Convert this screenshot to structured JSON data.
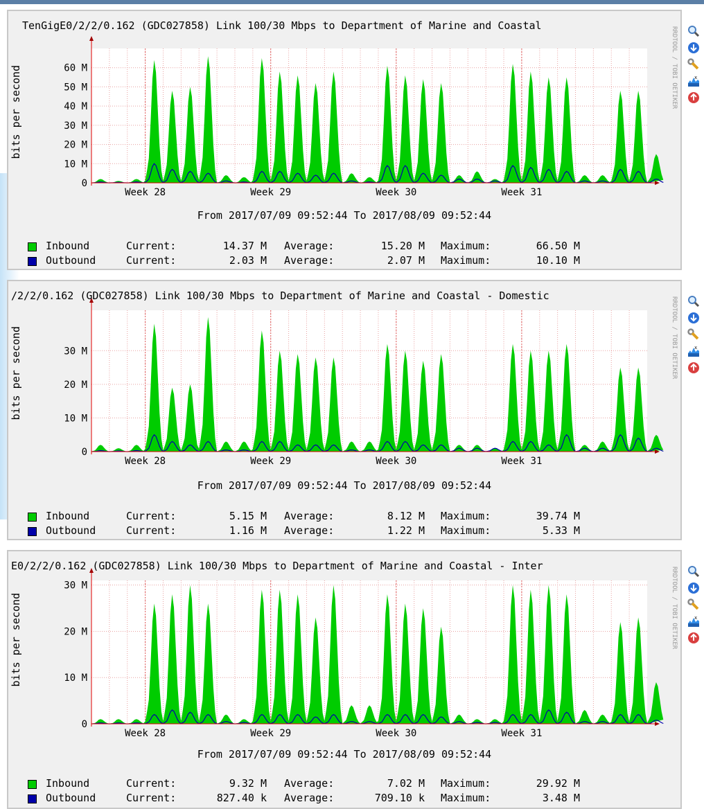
{
  "colors": {
    "inbound": "#00cc00",
    "outbound": "#0000ff",
    "grid": "#e8a0a0",
    "axis": "#e00000",
    "panel_bg": "#f0f0f0",
    "plot_bg": "#ffffff"
  },
  "icons": [
    "zoom-icon",
    "download-icon",
    "edit-wrench-icon",
    "realtime-graph-icon",
    "remove-icon"
  ],
  "graphs": [
    {
      "title": "TenGigE0/2/2/0.162 (GDC027858) Link 100/30 Mbps to Department of Marine and Coastal",
      "y_label": "bits per second",
      "rrd_credit": "RRDTOOL / TOBI OETIKER",
      "date_range": "From 2017/07/09 09:52:44 To 2017/08/09 09:52:44",
      "legend": {
        "inbound": {
          "name": "Inbound",
          "current_label": "Current:",
          "current": "14.37 M",
          "average_label": "Average:",
          "average": "15.20 M",
          "maximum_label": "Maximum:",
          "maximum": "66.50 M"
        },
        "outbound": {
          "name": "Outbound",
          "current_label": "Current:",
          "current": "2.03 M",
          "average_label": "Average:",
          "average": "2.07 M",
          "maximum_label": "Maximum:",
          "maximum": "10.10 M"
        }
      }
    },
    {
      "title": "/2/2/0.162 (GDC027858) Link 100/30 Mbps to Department of Marine and Coastal - Domestic",
      "y_label": "bits per second",
      "rrd_credit": "RRDTOOL / TOBI OETIKER",
      "date_range": "From 2017/07/09 09:52:44 To 2017/08/09 09:52:44",
      "legend": {
        "inbound": {
          "name": "Inbound",
          "current_label": "Current:",
          "current": "5.15 M",
          "average_label": "Average:",
          "average": "8.12 M",
          "maximum_label": "Maximum:",
          "maximum": "39.74 M"
        },
        "outbound": {
          "name": "Outbound",
          "current_label": "Current:",
          "current": "1.16 M",
          "average_label": "Average:",
          "average": "1.22 M",
          "maximum_label": "Maximum:",
          "maximum": "5.33 M"
        }
      }
    },
    {
      "title": "E0/2/2/0.162 (GDC027858) Link 100/30 Mbps to Department of Marine and Coastal - Inter",
      "y_label": "bits per second",
      "rrd_credit": "RRDTOOL / TOBI OETIKER",
      "date_range": "From 2017/07/09 09:52:44 To 2017/08/09 09:52:44",
      "legend": {
        "inbound": {
          "name": "Inbound",
          "current_label": "Current:",
          "current": "9.32 M",
          "average_label": "Average:",
          "average": "7.02 M",
          "maximum_label": "Maximum:",
          "maximum": "29.92 M"
        },
        "outbound": {
          "name": "Outbound",
          "current_label": "Current:",
          "current": "827.40 k",
          "average_label": "Average:",
          "average": "709.10 k",
          "maximum_label": "Maximum:",
          "maximum": "3.48 M"
        }
      }
    }
  ],
  "chart_data": [
    {
      "type": "area",
      "ylabel": "bits per second",
      "ylim": [
        0,
        70
      ],
      "y_unit": "M",
      "y_ticks": [
        0,
        10,
        20,
        30,
        40,
        50,
        60
      ],
      "y_tick_labels": [
        "0",
        "10 M",
        "20 M",
        "30 M",
        "40 M",
        "50 M",
        "60 M"
      ],
      "x_range": [
        "2017-07-09",
        "2017-08-09"
      ],
      "x_tick_labels": [
        "Week 28",
        "Week 29",
        "Week 30",
        "Week 31"
      ],
      "x_tick_dates": [
        "2017-07-12",
        "2017-07-19",
        "2017-07-26",
        "2017-08-02"
      ],
      "grid": true,
      "series": [
        {
          "name": "Inbound",
          "style": "area",
          "daily_peaks": [
            2,
            1,
            2,
            64,
            48,
            50,
            66,
            4,
            3,
            65,
            58,
            56,
            52,
            58,
            5,
            3,
            61,
            56,
            54,
            52,
            4,
            6,
            2,
            62,
            58,
            55,
            55,
            4,
            4,
            48,
            48,
            15
          ]
        },
        {
          "name": "Outbound",
          "style": "line",
          "daily_peaks": [
            0.5,
            0.3,
            0.5,
            10,
            7,
            6,
            5,
            1,
            0.5,
            6,
            6,
            5,
            4,
            5,
            1,
            0.5,
            9,
            9,
            5,
            4,
            2,
            2,
            1,
            9,
            8,
            7,
            6,
            1,
            1,
            7,
            6,
            2
          ]
        }
      ]
    },
    {
      "type": "area",
      "ylabel": "bits per second",
      "ylim": [
        0,
        42
      ],
      "y_unit": "M",
      "y_ticks": [
        0,
        10,
        20,
        30
      ],
      "y_tick_labels": [
        "0",
        "10 M",
        "20 M",
        "30 M"
      ],
      "x_range": [
        "2017-07-09",
        "2017-08-09"
      ],
      "x_tick_labels": [
        "Week 28",
        "Week 29",
        "Week 30",
        "Week 31"
      ],
      "x_tick_dates": [
        "2017-07-12",
        "2017-07-19",
        "2017-07-26",
        "2017-08-02"
      ],
      "grid": true,
      "series": [
        {
          "name": "Inbound",
          "style": "area",
          "daily_peaks": [
            2,
            1,
            2,
            38,
            19,
            20,
            40,
            3,
            3,
            36,
            30,
            29,
            28,
            28,
            3,
            3,
            32,
            30,
            27,
            29,
            2,
            2,
            1,
            32,
            30,
            30,
            32,
            2,
            3,
            25,
            25,
            5
          ]
        },
        {
          "name": "Outbound",
          "style": "line",
          "daily_peaks": [
            0.3,
            0.2,
            0.3,
            5,
            3,
            2,
            3,
            0.5,
            0.5,
            3,
            3,
            2,
            2,
            2,
            0.5,
            0.5,
            3,
            3,
            2,
            2,
            1,
            1,
            1,
            3,
            3,
            2,
            5,
            1,
            1,
            5,
            4,
            1
          ]
        }
      ]
    },
    {
      "type": "area",
      "ylabel": "bits per second",
      "ylim": [
        0,
        31
      ],
      "y_unit": "M",
      "y_ticks": [
        0,
        10,
        20,
        30
      ],
      "y_tick_labels": [
        "0",
        "10 M",
        "20 M",
        "30 M"
      ],
      "x_range": [
        "2017-07-09",
        "2017-08-09"
      ],
      "x_tick_labels": [
        "Week 28",
        "Week 29",
        "Week 30",
        "Week 31"
      ],
      "x_tick_dates": [
        "2017-07-12",
        "2017-07-19",
        "2017-07-26",
        "2017-08-02"
      ],
      "grid": true,
      "series": [
        {
          "name": "Inbound",
          "style": "area",
          "daily_peaks": [
            1,
            1,
            1,
            26,
            28,
            30,
            26,
            2,
            1,
            29,
            29,
            28,
            23,
            30,
            4,
            4,
            28,
            26,
            25,
            21,
            2,
            1,
            1,
            30,
            29,
            30,
            28,
            3,
            2,
            22,
            23,
            9
          ]
        },
        {
          "name": "Outbound",
          "style": "line",
          "daily_peaks": [
            0.2,
            0.2,
            0.2,
            2,
            3,
            2.5,
            2,
            0.5,
            0.3,
            2,
            2,
            2,
            1.5,
            2,
            0.5,
            0.5,
            2,
            2,
            2,
            1.5,
            0.5,
            0.3,
            0.3,
            2,
            2,
            3,
            2.5,
            0.5,
            0.5,
            2,
            2,
            0.8
          ]
        }
      ]
    }
  ]
}
